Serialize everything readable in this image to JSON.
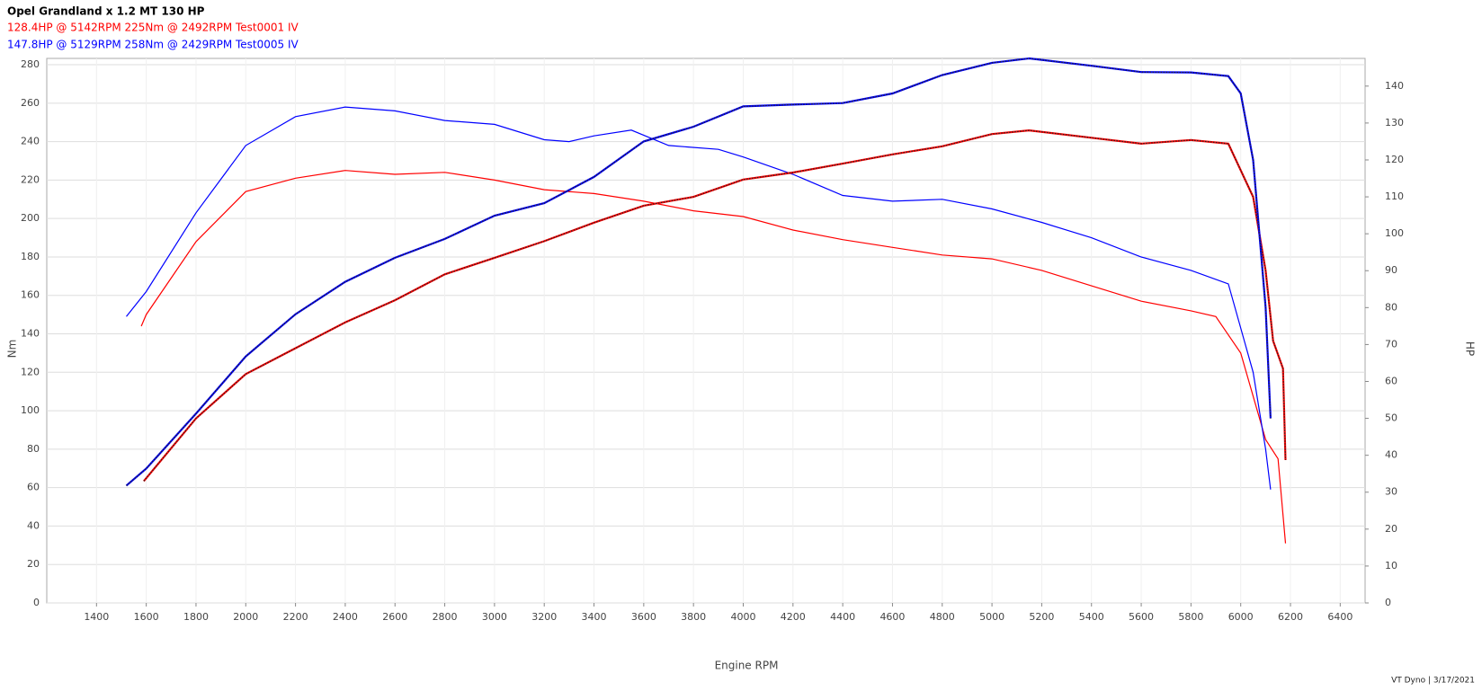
{
  "chart_data": {
    "type": "line",
    "title": "Opel Grandland x 1.2 MT 130 HP",
    "subtitles": [
      {
        "text": "128.4HP @  5142RPM  225Nm @ 2492RPM  Test0001 IV",
        "color": "#ff0000"
      },
      {
        "text": "147.8HP @  5129RPM  258Nm @ 2429RPM  Test0005 IV",
        "color": "#0000ff"
      }
    ],
    "xlabel": "Engine RPM",
    "ylabel": "Nm",
    "y2label": "HP",
    "footer": "VT Dyno | 3/17/2021",
    "xlim": [
      1200,
      6500
    ],
    "xticks": [
      1400,
      1600,
      1800,
      2000,
      2200,
      2400,
      2600,
      2800,
      3000,
      3200,
      3400,
      3600,
      3800,
      4000,
      4200,
      4400,
      4600,
      4800,
      5000,
      5200,
      5400,
      5600,
      5800,
      6000,
      6200,
      6400
    ],
    "ylim": [
      0,
      283.3
    ],
    "yticks": [
      0,
      20,
      40,
      60,
      80,
      100,
      120,
      140,
      160,
      180,
      200,
      220,
      240,
      260,
      280
    ],
    "y2lim": [
      0,
      147.5
    ],
    "y2ticks": [
      0,
      10,
      20,
      30,
      40,
      50,
      60,
      70,
      80,
      90,
      100,
      110,
      120,
      130,
      140
    ],
    "grid": true,
    "series": [
      {
        "color": "#ff0000",
        "axis": "y",
        "dotted": false,
        "x": [
          1580,
          1600,
          1800,
          2000,
          2200,
          2400,
          2600,
          2800,
          3000,
          3200,
          3400,
          3600,
          3800,
          4000,
          4200,
          4400,
          4600,
          4800,
          5000,
          5200,
          5400,
          5600,
          5800,
          5900,
          6000,
          6100,
          6150,
          6180
        ],
        "values": [
          144,
          150,
          188,
          214,
          221,
          225,
          223,
          224,
          220,
          215,
          213,
          209,
          204,
          201,
          194,
          189,
          185,
          181,
          179,
          173,
          165,
          157,
          152,
          149,
          130,
          85,
          75,
          31
        ]
      },
      {
        "color": "#0000ff",
        "axis": "y",
        "dotted": false,
        "x": [
          1520,
          1600,
          1800,
          2000,
          2200,
          2400,
          2600,
          2800,
          3000,
          3200,
          3300,
          3400,
          3550,
          3700,
          3900,
          4000,
          4200,
          4400,
          4600,
          4800,
          5000,
          5200,
          5400,
          5600,
          5800,
          5950,
          6050,
          6100,
          6120
        ],
        "values": [
          149,
          162,
          203,
          238,
          253,
          258,
          256,
          251,
          249,
          241,
          240,
          243,
          246,
          238,
          236,
          232,
          223,
          212,
          209,
          210,
          205,
          198,
          190,
          180,
          173,
          166,
          120,
          80,
          59
        ]
      },
      {
        "color": "#ff0000",
        "axis": "y2",
        "dotted": true,
        "x": [
          1590,
          1800,
          2000,
          2200,
          2400,
          2600,
          2800,
          3000,
          3200,
          3400,
          3600,
          3800,
          4000,
          4200,
          4400,
          4600,
          4800,
          5000,
          5150,
          5400,
          5600,
          5800,
          5950,
          6050,
          6100,
          6130,
          6170,
          6180
        ],
        "values": [
          33,
          50,
          62,
          69,
          76,
          82,
          89,
          93.5,
          98,
          103,
          107.6,
          110,
          114.7,
          116.6,
          119,
          121.5,
          123.7,
          127,
          128,
          126,
          124.4,
          125.4,
          124.4,
          110,
          90,
          71,
          63.5,
          38.7
        ]
      },
      {
        "color": "#0000ff",
        "axis": "y2",
        "dotted": true,
        "x": [
          1520,
          1600,
          1800,
          2000,
          2200,
          2400,
          2600,
          2800,
          3000,
          3200,
          3400,
          3600,
          3800,
          4000,
          4200,
          4400,
          4600,
          4800,
          5000,
          5150,
          5400,
          5600,
          5800,
          5950,
          6000,
          6050,
          6100,
          6120
        ],
        "values": [
          31.8,
          36.4,
          51.3,
          66.8,
          78.2,
          87,
          93.5,
          98.6,
          104.9,
          108.3,
          115.4,
          125,
          129,
          134.5,
          135,
          135.4,
          138,
          143,
          146.3,
          147.5,
          145.5,
          143.8,
          143.7,
          142.7,
          138,
          120,
          80,
          50
        ]
      }
    ]
  }
}
